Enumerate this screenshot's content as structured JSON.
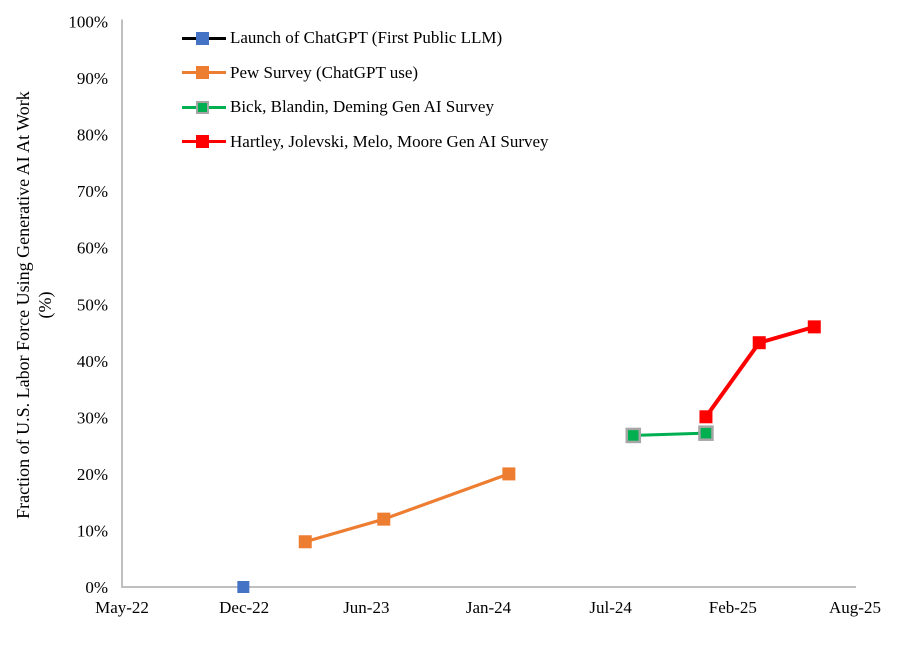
{
  "chart_data": {
    "type": "line",
    "title": "",
    "ylabel_line1": "Fraction of U.S. Labor Force Using Generative AI At Work",
    "ylabel_line2": "(%)",
    "xlabel": "",
    "ylim": [
      0,
      100
    ],
    "ytick_step": 10,
    "ytick_labels": [
      "0%",
      "10%",
      "20%",
      "30%",
      "40%",
      "50%",
      "60%",
      "70%",
      "80%",
      "90%",
      "100%"
    ],
    "xtick_labels": [
      "May-22",
      "Dec-22",
      "Jun-23",
      "Jan-24",
      "Jul-24",
      "Feb-25",
      "Aug-25"
    ],
    "xtick_months": [
      0,
      7,
      13,
      20,
      26,
      33,
      39
    ],
    "x_base": "May-2022",
    "grid": false,
    "legend_position": "top-left-inside",
    "axis_color": "#BFBFBF",
    "text_color": "#000000",
    "series": [
      {
        "name": "Launch of ChatGPT (First Public LLM)",
        "line_color": "#000000",
        "marker_color": "#4472C4",
        "marker_border": "#4472C4",
        "line_width": 3,
        "marker_size": 12,
        "points": [
          {
            "date": "2022-11-30",
            "value": 0
          }
        ]
      },
      {
        "name": "Pew Survey (ChatGPT use)",
        "line_color": "#ED7D31",
        "marker_color": "#ED7D31",
        "marker_border": "#ED7D31",
        "line_width": 3.2,
        "marker_size": 13,
        "points": [
          {
            "date": "2023-03-01",
            "value": 8
          },
          {
            "date": "2023-07-01",
            "value": 12
          },
          {
            "date": "2024-02-01",
            "value": 20
          }
        ]
      },
      {
        "name": "Bick, Blandin, Deming Gen AI Survey",
        "line_color": "#00B050",
        "marker_color": "#00B050",
        "marker_border": "#A6A6A6",
        "line_width": 3,
        "marker_size": 13,
        "points": [
          {
            "date": "2024-08-10",
            "value": 26.8
          },
          {
            "date": "2024-12-15",
            "value": 27.2
          }
        ]
      },
      {
        "name": "Hartley, Jolevski, Melo, Moore Gen AI Survey",
        "line_color": "#FF0000",
        "marker_color": "#FF0000",
        "marker_border": "#FF0000",
        "line_width": 4,
        "marker_size": 13,
        "points": [
          {
            "date": "2024-12-15",
            "value": 30.1
          },
          {
            "date": "2025-03-10",
            "value": 43.2
          },
          {
            "date": "2025-06-01",
            "value": 46
          }
        ]
      }
    ]
  }
}
